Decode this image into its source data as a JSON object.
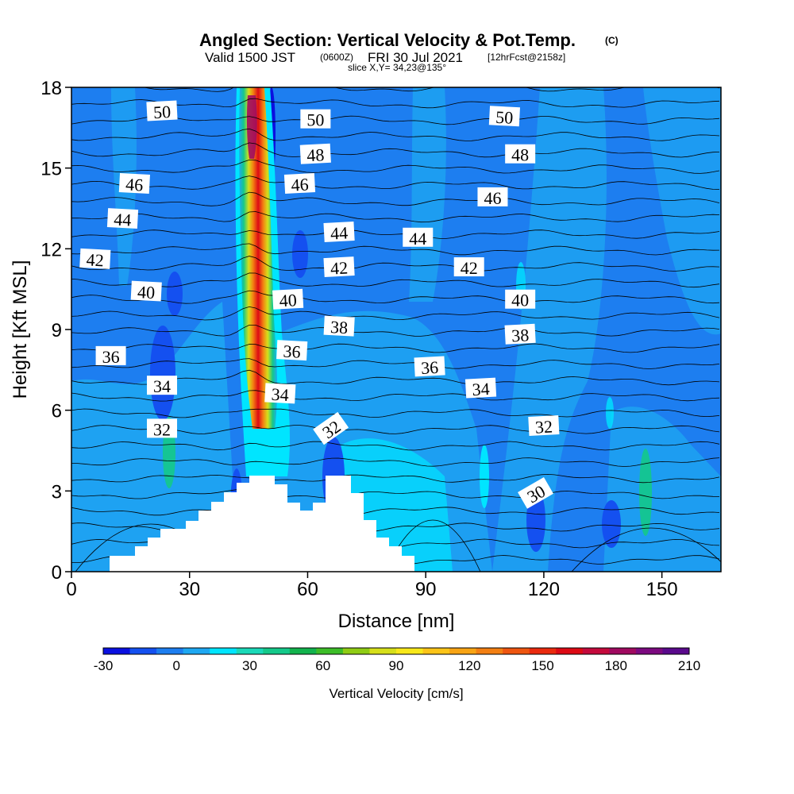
{
  "header": {
    "title": "Angled Section: Vertical Velocity & Pot.Temp.",
    "copyright": "(C)",
    "valid_prefix": "Valid 1500 JST",
    "utc": "(0600Z)",
    "valid_date": "FRI 30 Jul 2021",
    "forecast": "[12hrFcst@2158z]",
    "slice": "slice X,Y= 34,23@135°"
  },
  "colorbar": {
    "label": "Vertical Velocity [cm/s]",
    "tick_labels": [
      "-30",
      "0",
      "30",
      "60",
      "90",
      "120",
      "150",
      "180",
      "210"
    ],
    "colors": [
      "#0a10e0",
      "#1450f0",
      "#1d7ef0",
      "#1ea8f2",
      "#00e5ff",
      "#1ad9b8",
      "#14c98a",
      "#12b34d",
      "#3cbd28",
      "#8fcc14",
      "#d6df1a",
      "#f8e81a",
      "#fcc418",
      "#f8a414",
      "#f37f12",
      "#ee5510",
      "#ea2a0e",
      "#dd0a14",
      "#c40a3c",
      "#a00a60",
      "#7c0a80",
      "#5a0a8c"
    ]
  },
  "chart_data": {
    "type": "contour",
    "title": "Angled Section: Vertical Velocity & Pot.Temp.",
    "xlabel": "Distance [nm]",
    "ylabel": "Height [Kft MSL]",
    "xlim": [
      0,
      165
    ],
    "ylim": [
      0,
      18
    ],
    "x_ticks": [
      0,
      30,
      60,
      90,
      120,
      150
    ],
    "y_ticks": [
      0,
      3,
      6,
      9,
      12,
      15,
      18
    ],
    "fill_variable": "Vertical Velocity [cm/s]",
    "fill_levels": [
      -30,
      210
    ],
    "contour_variable": "Pot.Temp.",
    "contour_labels": [
      {
        "text": "50",
        "x": 23,
        "y": 17.1
      },
      {
        "text": "50",
        "x": 62,
        "y": 16.8
      },
      {
        "text": "50",
        "x": 110,
        "y": 16.9
      },
      {
        "text": "48",
        "x": 62,
        "y": 15.5
      },
      {
        "text": "48",
        "x": 114,
        "y": 15.5
      },
      {
        "text": "46",
        "x": 16,
        "y": 14.4
      },
      {
        "text": "46",
        "x": 58,
        "y": 14.4
      },
      {
        "text": "46",
        "x": 107,
        "y": 13.9
      },
      {
        "text": "44",
        "x": 13,
        "y": 13.1
      },
      {
        "text": "44",
        "x": 68,
        "y": 12.6
      },
      {
        "text": "44",
        "x": 88,
        "y": 12.4
      },
      {
        "text": "42",
        "x": 6,
        "y": 11.6
      },
      {
        "text": "42",
        "x": 68,
        "y": 11.3
      },
      {
        "text": "42",
        "x": 101,
        "y": 11.3
      },
      {
        "text": "40",
        "x": 19,
        "y": 10.4
      },
      {
        "text": "40",
        "x": 55,
        "y": 10.1
      },
      {
        "text": "40",
        "x": 114,
        "y": 10.1
      },
      {
        "text": "38",
        "x": 68,
        "y": 9.1
      },
      {
        "text": "38",
        "x": 114,
        "y": 8.8
      },
      {
        "text": "36",
        "x": 10,
        "y": 8.0
      },
      {
        "text": "36",
        "x": 56,
        "y": 8.2
      },
      {
        "text": "36",
        "x": 91,
        "y": 7.6
      },
      {
        "text": "34",
        "x": 23,
        "y": 6.9
      },
      {
        "text": "34",
        "x": 53,
        "y": 6.6
      },
      {
        "text": "34",
        "x": 104,
        "y": 6.8
      },
      {
        "text": "32",
        "x": 23,
        "y": 5.3
      },
      {
        "text": "32",
        "x": 66,
        "y": 5.3
      },
      {
        "text": "32",
        "x": 120,
        "y": 5.4
      },
      {
        "text": "30",
        "x": 118,
        "y": 2.9
      }
    ],
    "updraft_core": {
      "x": 45.5,
      "max_cm_s": 200
    }
  }
}
